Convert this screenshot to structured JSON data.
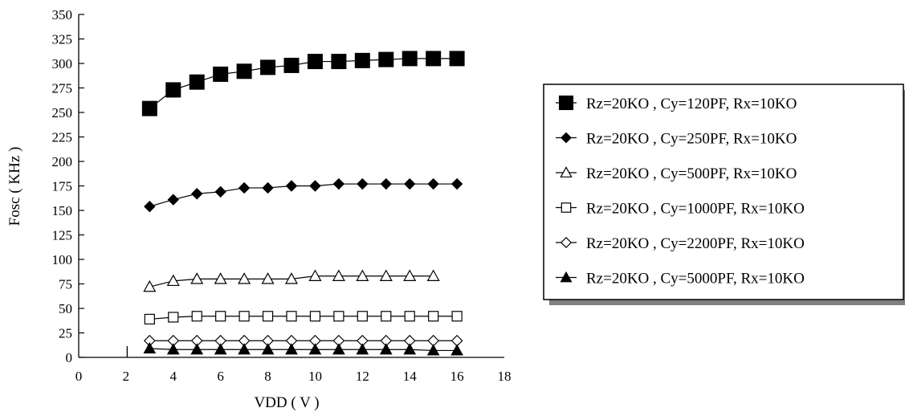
{
  "chart_data": {
    "type": "line",
    "title": "",
    "xlabel": "VDD ( V )",
    "ylabel": "Fosc ( KHz )",
    "xlim": [
      0,
      18
    ],
    "ylim": [
      0,
      350
    ],
    "xticks": [
      0,
      2,
      4,
      6,
      8,
      10,
      12,
      14,
      16,
      18
    ],
    "yticks": [
      0,
      25,
      50,
      75,
      100,
      125,
      150,
      175,
      200,
      225,
      250,
      275,
      300,
      325,
      350
    ],
    "grid": false,
    "legend_position": "right",
    "series": [
      {
        "name": "Rz=20KO , Cy=120PF, Rx=10KO",
        "marker": "filled-square",
        "x": [
          3,
          4,
          5,
          6,
          7,
          8,
          9,
          10,
          11,
          12,
          13,
          14,
          15,
          16
        ],
        "y": [
          254,
          273,
          281,
          289,
          292,
          296,
          298,
          302,
          302,
          303,
          304,
          305,
          305,
          305
        ]
      },
      {
        "name": "Rz=20KO , Cy=250PF, Rx=10KO",
        "marker": "filled-diamond",
        "x": [
          3,
          4,
          5,
          6,
          7,
          8,
          9,
          10,
          11,
          12,
          13,
          14,
          15,
          16
        ],
        "y": [
          154,
          161,
          167,
          169,
          173,
          173,
          175,
          175,
          177,
          177,
          177,
          177,
          177,
          177
        ]
      },
      {
        "name": "Rz=20KO , Cy=500PF, Rx=10KO",
        "marker": "open-triangle",
        "x": [
          3,
          4,
          5,
          6,
          7,
          8,
          9,
          10,
          11,
          12,
          13,
          14,
          15
        ],
        "y": [
          72,
          78,
          80,
          80,
          80,
          80,
          80,
          83,
          83,
          83,
          83,
          83,
          83
        ]
      },
      {
        "name": "Rz=20KO , Cy=1000PF, Rx=10KO",
        "marker": "open-square",
        "x": [
          3,
          4,
          5,
          6,
          7,
          8,
          9,
          10,
          11,
          12,
          13,
          14,
          15,
          16
        ],
        "y": [
          39,
          41,
          42,
          42,
          42,
          42,
          42,
          42,
          42,
          42,
          42,
          42,
          42,
          42
        ]
      },
      {
        "name": "Rz=20KO , Cy=2200PF, Rx=10KO",
        "marker": "open-diamond",
        "x": [
          3,
          4,
          5,
          6,
          7,
          8,
          9,
          10,
          11,
          12,
          13,
          14,
          15,
          16
        ],
        "y": [
          17,
          17,
          17,
          17,
          17,
          17,
          17,
          17,
          17,
          17,
          17,
          17,
          17,
          17
        ]
      },
      {
        "name": "Rz=20KO , Cy=5000PF, Rx=10KO",
        "marker": "filled-triangle",
        "x": [
          3,
          4,
          5,
          6,
          7,
          8,
          9,
          10,
          11,
          12,
          13,
          14,
          15,
          16
        ],
        "y": [
          9,
          8,
          8,
          8,
          8,
          8,
          8,
          8,
          8,
          8,
          8,
          8,
          7,
          7
        ]
      }
    ]
  }
}
